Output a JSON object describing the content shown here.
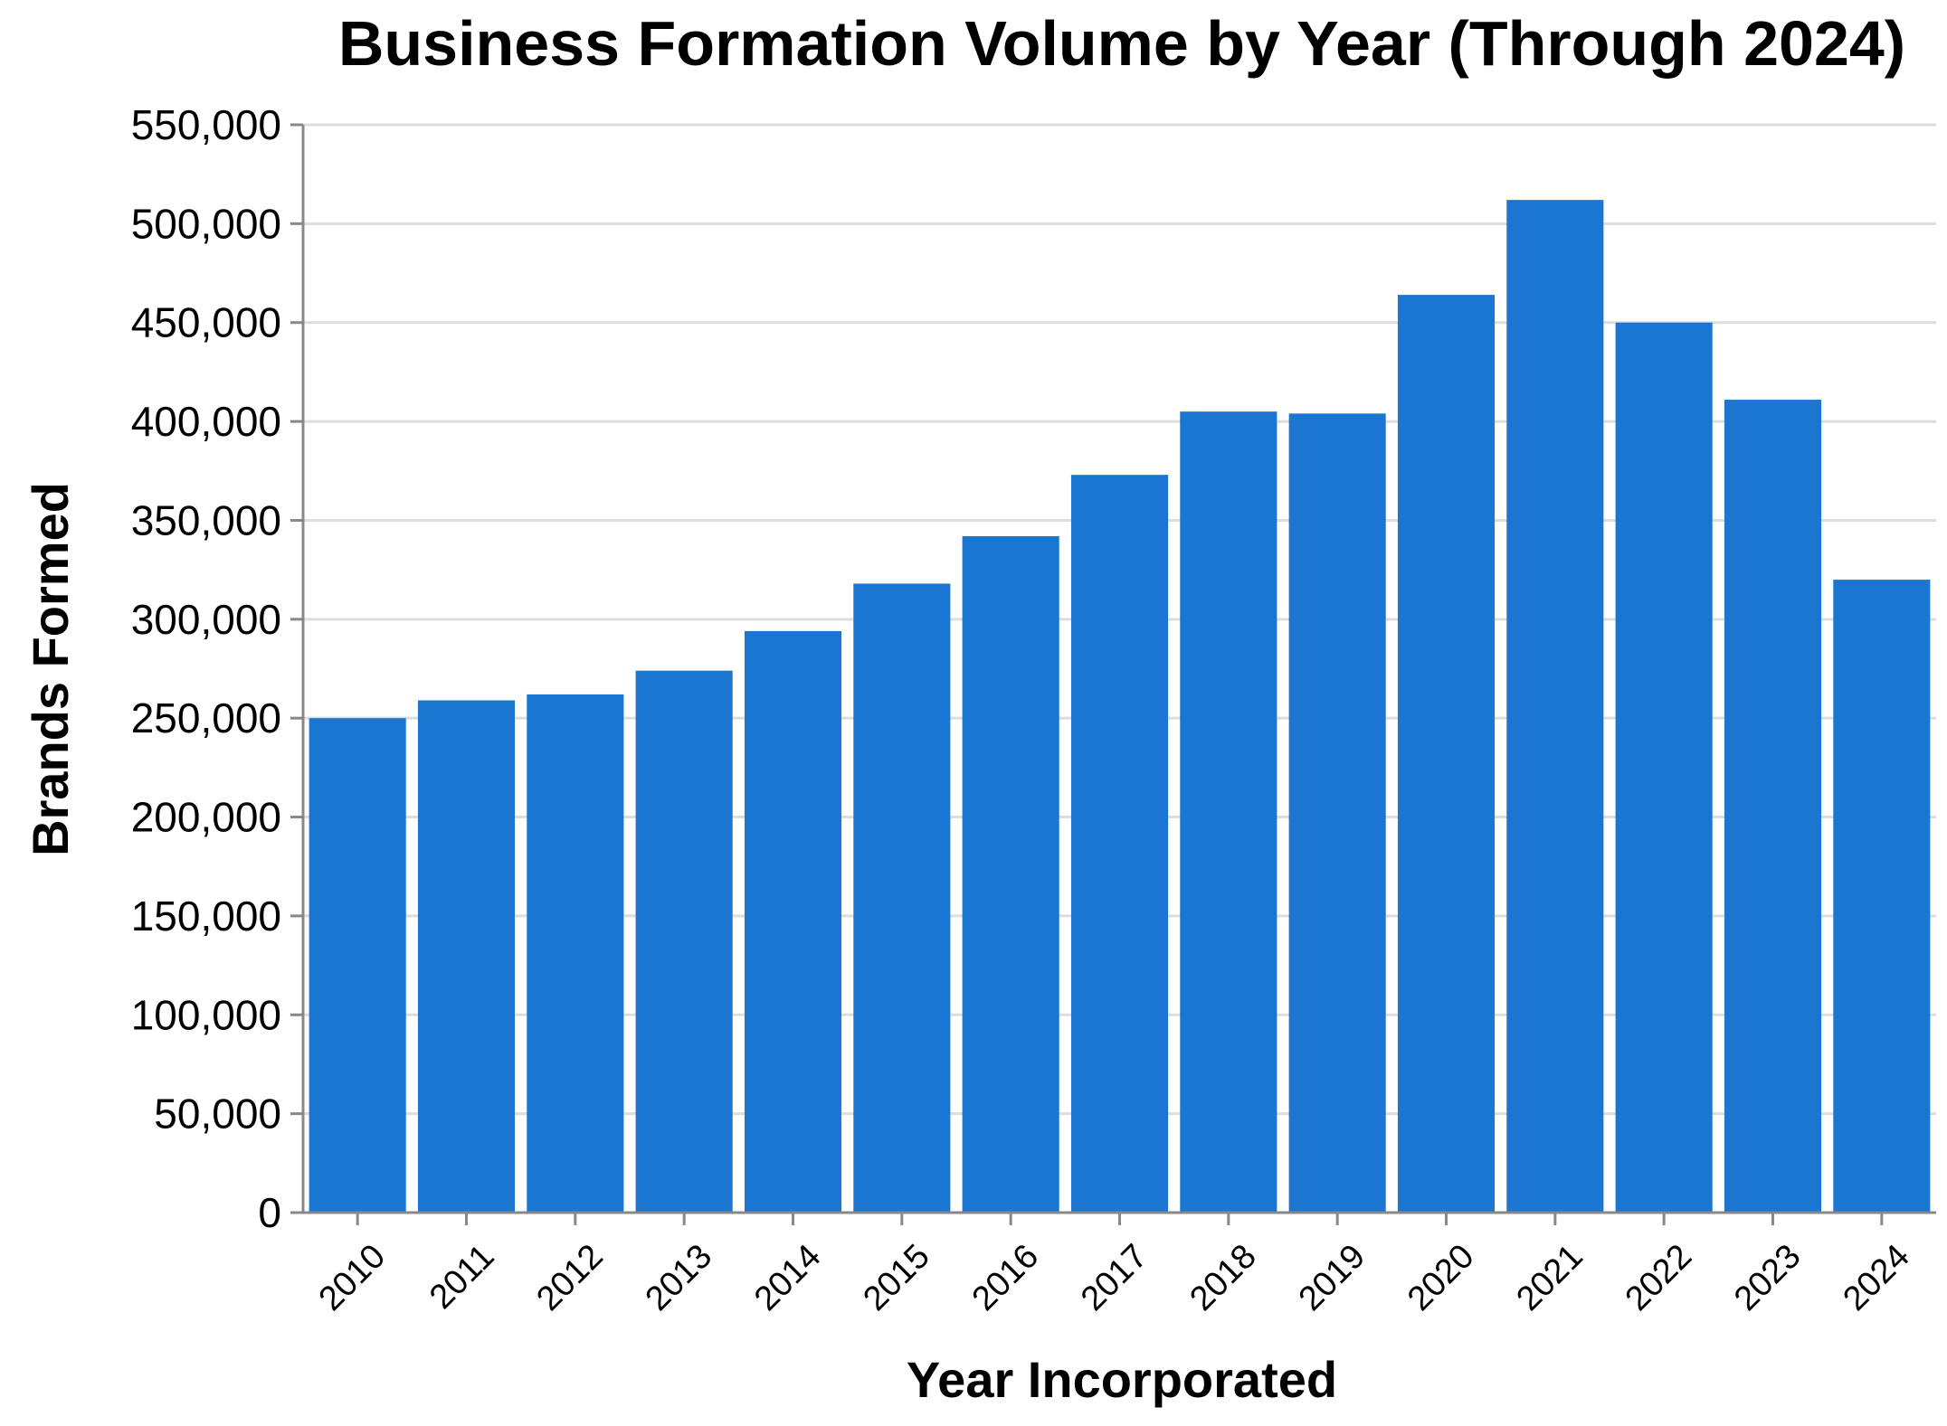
{
  "chart_data": {
    "type": "bar",
    "title": "Business Formation Volume by Year (Through 2024)",
    "xlabel": "Year Incorporated",
    "ylabel": "Brands Formed",
    "categories": [
      "2010",
      "2011",
      "2012",
      "2013",
      "2014",
      "2015",
      "2016",
      "2017",
      "2018",
      "2019",
      "2020",
      "2021",
      "2022",
      "2023",
      "2024"
    ],
    "values": [
      250000,
      259000,
      262000,
      274000,
      294000,
      318000,
      342000,
      373000,
      405000,
      404000,
      464000,
      512000,
      450000,
      411000,
      320000
    ],
    "ylim": [
      0,
      550000
    ],
    "yticks": [
      0,
      50000,
      100000,
      150000,
      200000,
      250000,
      300000,
      350000,
      400000,
      450000,
      500000,
      550000
    ],
    "ytick_labels": [
      "0",
      "50,000",
      "100,000",
      "150,000",
      "200,000",
      "250,000",
      "300,000",
      "350,000",
      "400,000",
      "450,000",
      "500,000",
      "550,000"
    ],
    "bar_color": "#1b76d2",
    "grid": true,
    "legend": "none"
  }
}
